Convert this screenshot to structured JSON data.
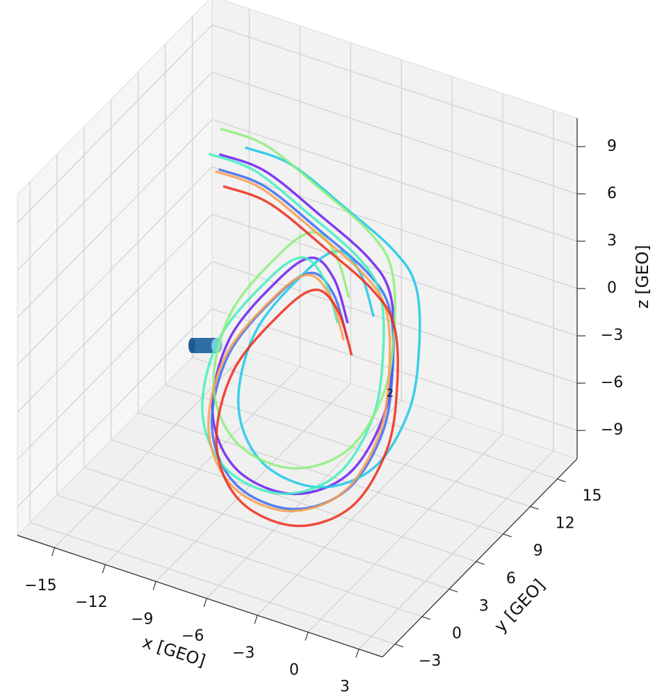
{
  "chart_data": {
    "type": "line3d",
    "xlabel": "x [GEO]",
    "ylabel": "y [GEO]",
    "zlabel": "z [GEO]",
    "annotation": "2",
    "xlim": [
      -17.2,
      4.4
    ],
    "ylim": [
      -4.4,
      17.2
    ],
    "zlim": [
      -10.8,
      10.8
    ],
    "xticks": [
      {
        "value": -15,
        "label": "−15"
      },
      {
        "value": -12,
        "label": "−12"
      },
      {
        "value": -9,
        "label": "−9"
      },
      {
        "value": -6,
        "label": "−6"
      },
      {
        "value": -3,
        "label": "−3"
      },
      0,
      3
    ],
    "yticks": [
      {
        "value": -3,
        "label": "−3"
      },
      0,
      3,
      6,
      9,
      12,
      15
    ],
    "zticks": [
      {
        "value": -9,
        "label": "−9"
      },
      {
        "value": -6,
        "label": "−6"
      },
      {
        "value": -3,
        "label": "−3"
      },
      0,
      3,
      6,
      9
    ],
    "grid": true,
    "series": [
      {
        "color": "#6b1cf2",
        "x": [
          -10.8,
          -8.1,
          -4.9,
          -2.0,
          -0.7,
          -0.5,
          -1.1,
          -3.2,
          -6.5,
          -9.8,
          -11.2,
          -10.2,
          -7.3,
          -5.3,
          -4.0,
          -3.2
        ],
        "y": [
          6,
          6,
          6,
          6,
          6,
          6,
          6,
          6,
          6,
          6,
          6,
          6,
          6,
          6,
          6,
          6
        ],
        "z": [
          9.6,
          9.5,
          7.9,
          6.2,
          4.4,
          0.8,
          -3.6,
          -8.0,
          -10.4,
          -10.0,
          -6.9,
          -1.9,
          2.9,
          5.0,
          4.1,
          1.6
        ]
      },
      {
        "color": "#3a6cf4",
        "x": [
          -10.3,
          -7.6,
          -4.4,
          -1.5,
          -0.2,
          0.0,
          -0.6,
          -2.7,
          -6.0,
          -9.3,
          -10.7,
          -9.7,
          -6.8,
          -4.8,
          -3.5,
          -2.7
        ],
        "y": [
          5,
          5,
          5,
          5,
          5,
          5,
          5,
          5,
          5,
          5,
          5,
          5,
          5,
          5,
          5,
          5
        ],
        "z": [
          9.4,
          9.3,
          7.7,
          6.0,
          4.2,
          0.6,
          -3.8,
          -8.2,
          -10.6,
          -10.2,
          -7.1,
          -2.1,
          2.7,
          4.8,
          3.9,
          1.4
        ]
      },
      {
        "color": "#1ac8e8",
        "x": [
          -9.8,
          -7.1,
          -3.9,
          -1.0,
          0.3,
          0.5,
          -0.1,
          -2.2,
          -5.5,
          -8.8,
          -10.2,
          -9.2,
          -6.3,
          -4.3,
          -3.0,
          -2.2
        ],
        "y": [
          7,
          7,
          7,
          7,
          7,
          7,
          7,
          7,
          7,
          7,
          7,
          7,
          7,
          7,
          7,
          7
        ],
        "z": [
          9.8,
          9.7,
          8.1,
          6.4,
          4.6,
          1.0,
          -3.4,
          -7.8,
          -10.2,
          -9.8,
          -6.7,
          -1.7,
          3.1,
          5.2,
          4.3,
          1.8
        ]
      },
      {
        "color": "#40f0c0",
        "x": [
          -11.4,
          -8.7,
          -5.5,
          -2.6,
          -1.3,
          -1.1,
          -1.7,
          -3.8,
          -7.1,
          -10.4,
          -11.8,
          -10.8,
          -7.9,
          -5.9,
          -4.6,
          -3.8
        ],
        "y": [
          6,
          6,
          6,
          6,
          6,
          6,
          6,
          6,
          6,
          6,
          6,
          6,
          6,
          6,
          6,
          6
        ],
        "z": [
          9.4,
          9.3,
          7.7,
          6.0,
          4.2,
          0.6,
          -3.8,
          -8.2,
          -10.6,
          -10.2,
          -7.1,
          -2.1,
          2.7,
          4.8,
          3.9,
          1.4
        ]
      },
      {
        "color": "#8cf07a",
        "x": [
          -11.8,
          -9.1,
          -5.9,
          -3.0,
          -1.7,
          -1.5,
          -2.1,
          -4.2,
          -7.5,
          -10.8,
          -12.2,
          -11.2,
          -8.3,
          -6.3,
          -5.0,
          -4.2
        ],
        "y": [
          8,
          8,
          8,
          8,
          8,
          8,
          8,
          8,
          8,
          8,
          8,
          8,
          8,
          8,
          8,
          8
        ],
        "z": [
          9.7,
          9.6,
          8.0,
          6.3,
          4.5,
          0.9,
          -3.5,
          -7.9,
          -10.3,
          -9.9,
          -6.8,
          -1.8,
          3.0,
          5.1,
          4.2,
          1.7
        ]
      },
      {
        "color": "#f8a050",
        "x": [
          -10.5,
          -7.8,
          -4.6,
          -1.7,
          -0.4,
          -0.2,
          -0.8,
          -2.9,
          -6.2,
          -9.5,
          -10.9,
          -9.9,
          -7.0,
          -5.0,
          -3.7,
          -2.9
        ],
        "y": [
          5,
          5,
          5,
          5,
          5,
          5,
          5,
          5,
          5,
          5,
          5,
          5,
          5,
          5,
          5,
          5
        ],
        "z": [
          9.2,
          9.1,
          7.5,
          5.8,
          4.0,
          0.4,
          -4.0,
          -8.4,
          -10.8,
          -10.4,
          -7.3,
          -2.3,
          2.5,
          4.6,
          3.7,
          1.2
        ]
      },
      {
        "color": "#f02a1a",
        "x": [
          -9.5,
          -6.8,
          -3.6,
          -0.7,
          0.6,
          0.8,
          0.2,
          -1.9,
          -5.2,
          -8.5,
          -9.9,
          -8.9,
          -6.0,
          -4.0,
          -2.7,
          -1.9
        ],
        "y": [
          4,
          4,
          4,
          4,
          4,
          4,
          4,
          4,
          4,
          4,
          4,
          4,
          4,
          4,
          4,
          4
        ],
        "z": [
          9.2,
          9.1,
          7.5,
          5.8,
          4.0,
          0.4,
          -4.0,
          -8.4,
          -10.8,
          -10.4,
          -7.3,
          -2.3,
          2.5,
          4.6,
          3.7,
          1.2
        ]
      }
    ]
  }
}
